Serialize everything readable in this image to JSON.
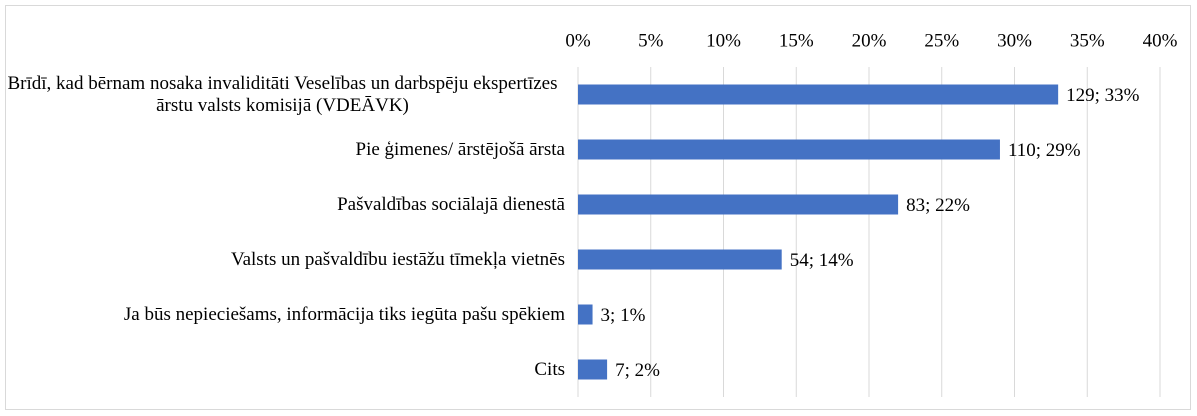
{
  "chart_data": {
    "type": "bar",
    "orientation": "horizontal",
    "categories": [
      "Brīdī, kad bērnam nosaka invaliditāti Veselības un darbspēju ekspertīzes ārstu valsts komisijā (VDEĀVK)",
      "Pie ģimenes/ ārstējošā ārsta",
      "Pašvaldības sociālajā dienestā",
      "Valsts un pašvaldību iestāžu tīmekļa vietnēs",
      "Ja būs nepieciešams, informācija tiks iegūta pašu spēkiem",
      "Cits"
    ],
    "values": [
      33,
      29,
      22,
      14,
      1,
      2
    ],
    "value_labels": [
      "129; 33%",
      "110; 29%",
      "83; 22%",
      "54; 14%",
      "3; 1%",
      "7; 2%"
    ],
    "color": "#4472c4",
    "xlim": [
      0,
      40
    ],
    "xticks": [
      {
        "value": 0,
        "label": "0%"
      },
      {
        "value": 5,
        "label": "5%"
      },
      {
        "value": 10,
        "label": "10%"
      },
      {
        "value": 15,
        "label": "15%"
      },
      {
        "value": 20,
        "label": "20%"
      },
      {
        "value": 25,
        "label": "25%"
      },
      {
        "value": 30,
        "label": "30%"
      },
      {
        "value": 35,
        "label": "35%"
      },
      {
        "value": 40,
        "label": "40%"
      }
    ],
    "grid": true
  }
}
